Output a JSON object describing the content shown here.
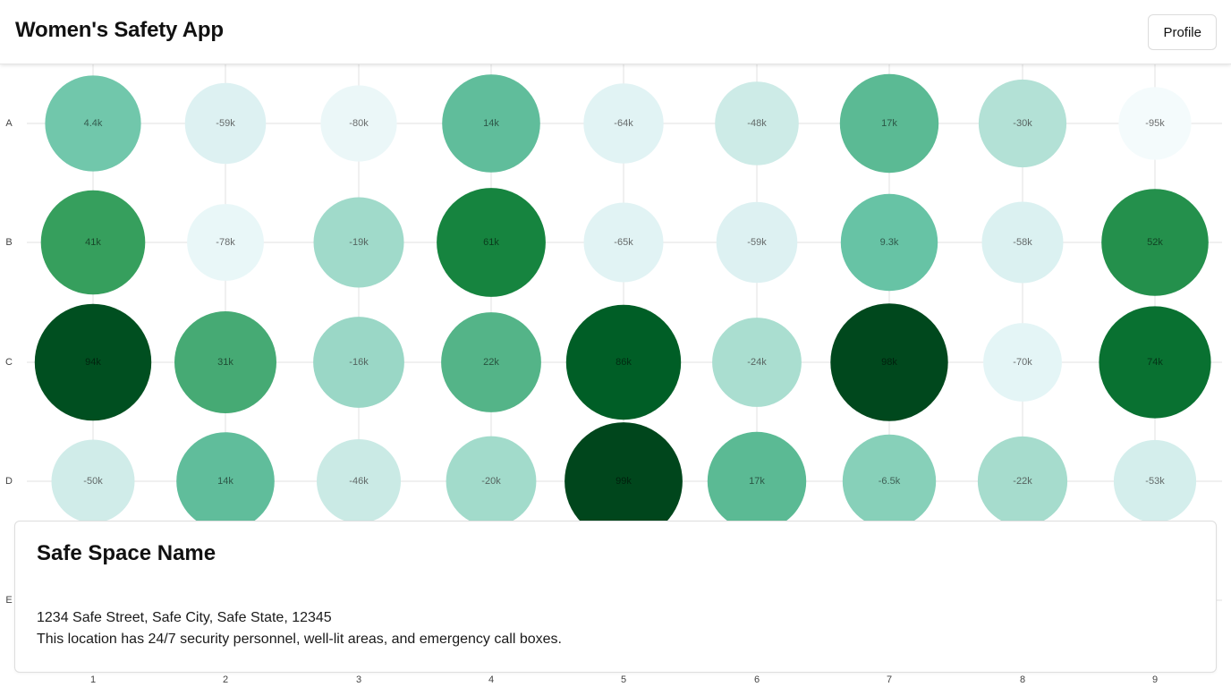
{
  "header": {
    "title": "Women's Safety App",
    "profile_label": "Profile"
  },
  "chart_data": {
    "type": "bubble-grid",
    "rows": [
      "A",
      "B",
      "C",
      "D",
      "E"
    ],
    "columns": [
      "1",
      "2",
      "3",
      "4",
      "5",
      "6",
      "7",
      "8",
      "9"
    ],
    "grid": true,
    "color_scale": {
      "low": "#f7fcfb",
      "high": "#00441b"
    },
    "value_range": [
      -100000,
      100000
    ],
    "cells": [
      {
        "row": "A",
        "col": "1",
        "value": 4400,
        "label": "4.4k"
      },
      {
        "row": "A",
        "col": "2",
        "value": -59000,
        "label": "-59k"
      },
      {
        "row": "A",
        "col": "3",
        "value": -80000,
        "label": "-80k"
      },
      {
        "row": "A",
        "col": "4",
        "value": 14000,
        "label": "14k"
      },
      {
        "row": "A",
        "col": "5",
        "value": -64000,
        "label": "-64k"
      },
      {
        "row": "A",
        "col": "6",
        "value": -48000,
        "label": "-48k"
      },
      {
        "row": "A",
        "col": "7",
        "value": 17000,
        "label": "17k"
      },
      {
        "row": "A",
        "col": "8",
        "value": -30000,
        "label": "-30k"
      },
      {
        "row": "A",
        "col": "9",
        "value": -95000,
        "label": "-95k"
      },
      {
        "row": "B",
        "col": "1",
        "value": 41000,
        "label": "41k"
      },
      {
        "row": "B",
        "col": "2",
        "value": -78000,
        "label": "-78k"
      },
      {
        "row": "B",
        "col": "3",
        "value": -19000,
        "label": "-19k"
      },
      {
        "row": "B",
        "col": "4",
        "value": 61000,
        "label": "61k"
      },
      {
        "row": "B",
        "col": "5",
        "value": -65000,
        "label": "-65k"
      },
      {
        "row": "B",
        "col": "6",
        "value": -59000,
        "label": "-59k"
      },
      {
        "row": "B",
        "col": "7",
        "value": 9300,
        "label": "9.3k"
      },
      {
        "row": "B",
        "col": "8",
        "value": -58000,
        "label": "-58k"
      },
      {
        "row": "B",
        "col": "9",
        "value": 52000,
        "label": "52k"
      },
      {
        "row": "C",
        "col": "1",
        "value": 94000,
        "label": "94k"
      },
      {
        "row": "C",
        "col": "2",
        "value": 31000,
        "label": "31k"
      },
      {
        "row": "C",
        "col": "3",
        "value": -16000,
        "label": "-16k"
      },
      {
        "row": "C",
        "col": "4",
        "value": 22000,
        "label": "22k"
      },
      {
        "row": "C",
        "col": "5",
        "value": 86000,
        "label": "86k"
      },
      {
        "row": "C",
        "col": "6",
        "value": -24000,
        "label": "-24k"
      },
      {
        "row": "C",
        "col": "7",
        "value": 98000,
        "label": "98k"
      },
      {
        "row": "C",
        "col": "8",
        "value": -70000,
        "label": "-70k"
      },
      {
        "row": "C",
        "col": "9",
        "value": 74000,
        "label": "74k"
      },
      {
        "row": "D",
        "col": "1",
        "value": -50000,
        "label": "-50k"
      },
      {
        "row": "D",
        "col": "2",
        "value": 14000,
        "label": "14k"
      },
      {
        "row": "D",
        "col": "3",
        "value": -46000,
        "label": "-46k"
      },
      {
        "row": "D",
        "col": "4",
        "value": -20000,
        "label": "-20k"
      },
      {
        "row": "D",
        "col": "5",
        "value": 99000,
        "label": "99k"
      },
      {
        "row": "D",
        "col": "6",
        "value": 17000,
        "label": "17k"
      },
      {
        "row": "D",
        "col": "7",
        "value": -6500,
        "label": "-6.5k"
      },
      {
        "row": "D",
        "col": "8",
        "value": -22000,
        "label": "-22k"
      },
      {
        "row": "D",
        "col": "9",
        "value": -53000,
        "label": "-53k"
      }
    ]
  },
  "safe_space": {
    "name": "Safe Space Name",
    "address": "1234 Safe Street, Safe City, Safe State, 12345",
    "description": "This location has 24/7 security personnel, well-lit areas, and emergency call boxes."
  }
}
